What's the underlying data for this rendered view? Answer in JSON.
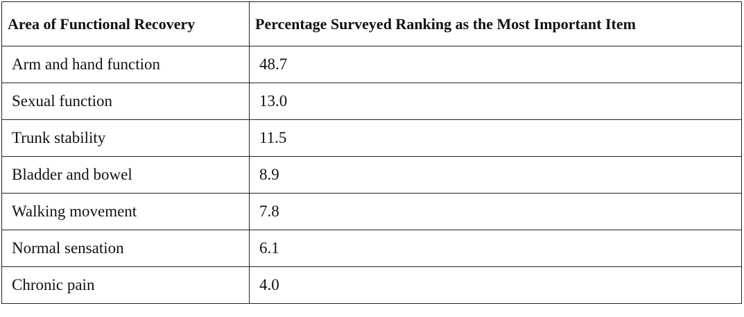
{
  "table": {
    "header": [
      "Area of Functional Recovery",
      "Percentage Surveyed Ranking as the Most Important Item"
    ],
    "rows": [
      [
        "Arm and hand function",
        "48.7"
      ],
      [
        "Sexual function",
        "13.0"
      ],
      [
        "Trunk stability",
        "11.5"
      ],
      [
        "Bladder and bowel",
        "8.9"
      ],
      [
        "Walking movement",
        "7.8"
      ],
      [
        "Normal sensation",
        "6.1"
      ],
      [
        "Chronic pain",
        "4.0"
      ]
    ]
  }
}
